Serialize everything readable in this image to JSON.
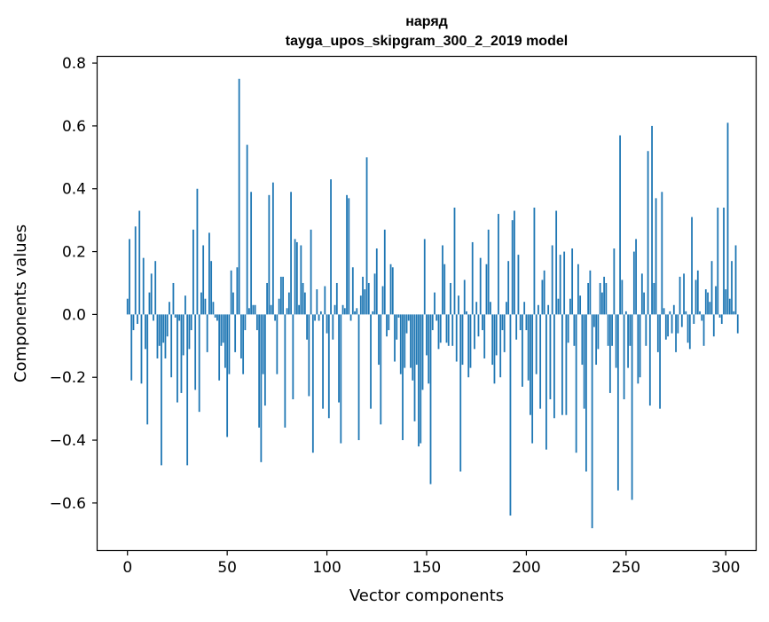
{
  "chart_data": {
    "type": "bar",
    "title": "наряд",
    "subtitle": "tayga_upos_skipgram_300_2_2019 model",
    "xlabel": "Vector components",
    "ylabel": "Components values",
    "xlim": [
      -15,
      315
    ],
    "ylim": [
      -0.75,
      0.82
    ],
    "xticks": [
      0,
      50,
      100,
      150,
      200,
      250,
      300
    ],
    "xtick_labels": [
      "0",
      "50",
      "100",
      "150",
      "200",
      "250",
      "300"
    ],
    "yticks": [
      -0.6,
      -0.4,
      -0.2,
      0.0,
      0.2,
      0.4,
      0.6,
      0.8
    ],
    "ytick_labels": [
      "−0.6",
      "−0.4",
      "−0.2",
      "0.0",
      "0.2",
      "0.4",
      "0.6",
      "0.8"
    ],
    "bar_color": "#1f77b4",
    "values": [
      0.05,
      0.24,
      -0.21,
      -0.05,
      0.28,
      -0.03,
      0.33,
      -0.22,
      0.18,
      -0.11,
      -0.35,
      0.07,
      0.13,
      -0.02,
      0.17,
      -0.14,
      -0.1,
      -0.48,
      -0.09,
      -0.14,
      -0.07,
      0.04,
      -0.2,
      0.1,
      -0.01,
      -0.28,
      -0.02,
      -0.25,
      -0.13,
      0.06,
      -0.48,
      -0.11,
      -0.05,
      0.27,
      -0.24,
      0.4,
      -0.31,
      0.07,
      0.22,
      0.05,
      -0.12,
      0.26,
      0.17,
      0.04,
      -0.01,
      -0.02,
      -0.21,
      -0.1,
      -0.09,
      -0.17,
      -0.39,
      -0.19,
      0.14,
      0.07,
      -0.12,
      0.15,
      0.75,
      -0.14,
      -0.19,
      -0.05,
      0.54,
      0.02,
      0.39,
      0.03,
      0.03,
      -0.05,
      -0.36,
      -0.47,
      -0.19,
      -0.29,
      0.1,
      0.38,
      0.03,
      0.42,
      -0.02,
      -0.19,
      0.05,
      0.12,
      0.12,
      -0.36,
      0.02,
      0.07,
      0.39,
      -0.27,
      0.24,
      0.23,
      0.03,
      0.22,
      0.1,
      0.07,
      -0.08,
      -0.26,
      0.27,
      -0.44,
      -0.02,
      0.08,
      -0.02,
      0.01,
      -0.3,
      0.09,
      -0.06,
      -0.33,
      0.43,
      -0.08,
      0.03,
      0.1,
      -0.28,
      -0.41,
      0.03,
      0.02,
      0.38,
      0.37,
      -0.02,
      0.15,
      0.01,
      0.02,
      -0.4,
      0.06,
      0.12,
      0.08,
      0.5,
      0.1,
      -0.3,
      0.01,
      0.13,
      0.21,
      -0.16,
      -0.35,
      0.09,
      0.27,
      -0.07,
      -0.05,
      0.16,
      0.15,
      -0.15,
      -0.08,
      -0.01,
      -0.19,
      -0.4,
      -0.17,
      -0.06,
      -0.02,
      -0.17,
      -0.21,
      -0.34,
      -0.16,
      -0.42,
      -0.41,
      -0.24,
      0.24,
      -0.13,
      -0.22,
      -0.54,
      -0.05,
      0.07,
      -0.02,
      -0.11,
      -0.09,
      0.22,
      0.16,
      -0.09,
      -0.1,
      0.1,
      -0.1,
      0.34,
      -0.15,
      0.06,
      -0.5,
      -0.16,
      0.11,
      0.01,
      -0.2,
      -0.17,
      0.23,
      -0.11,
      0.04,
      -0.07,
      0.18,
      -0.05,
      -0.14,
      0.16,
      0.27,
      0.04,
      -0.16,
      -0.22,
      -0.13,
      0.32,
      -0.2,
      -0.05,
      -0.12,
      0.04,
      0.17,
      -0.64,
      0.3,
      0.33,
      -0.08,
      0.19,
      -0.05,
      -0.23,
      0.04,
      -0.05,
      -0.21,
      -0.32,
      -0.41,
      0.34,
      -0.19,
      0.03,
      -0.3,
      0.11,
      0.14,
      -0.43,
      0.03,
      -0.27,
      0.22,
      -0.33,
      0.33,
      0.05,
      0.19,
      -0.32,
      0.2,
      -0.32,
      -0.09,
      0.05,
      0.21,
      -0.1,
      -0.44,
      0.16,
      0.06,
      -0.16,
      -0.3,
      -0.5,
      0.1,
      0.14,
      -0.68,
      -0.04,
      -0.16,
      -0.11,
      0.1,
      0.07,
      0.12,
      0.1,
      -0.1,
      -0.25,
      -0.1,
      0.21,
      -0.17,
      -0.56,
      0.57,
      0.11,
      -0.27,
      0.01,
      -0.17,
      -0.1,
      -0.59,
      0.2,
      0.24,
      -0.22,
      -0.2,
      0.13,
      0.07,
      -0.1,
      0.52,
      -0.29,
      0.6,
      0.1,
      0.37,
      -0.12,
      -0.3,
      0.39,
      0.02,
      -0.08,
      -0.07,
      0.01,
      -0.06,
      0.03,
      -0.12,
      -0.06,
      0.12,
      -0.04,
      0.13,
      0.01,
      -0.09,
      -0.11,
      0.31,
      -0.03,
      0.11,
      0.14,
      0.01,
      -0.02,
      -0.1,
      0.08,
      0.07,
      0.04,
      0.17,
      -0.07,
      0.09,
      0.34,
      -0.01,
      -0.03,
      0.34,
      0.08,
      0.61,
      0.05,
      0.17,
      0.01,
      0.22,
      -0.06
    ]
  }
}
